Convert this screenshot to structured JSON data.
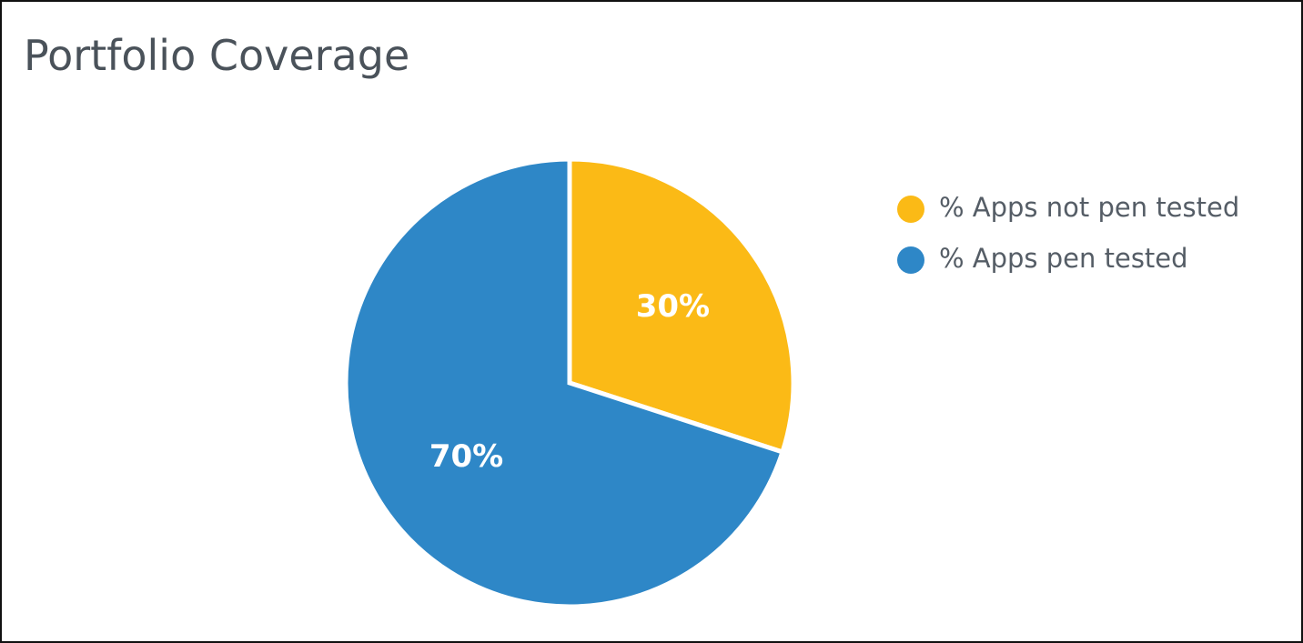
{
  "chart_data": {
    "type": "pie",
    "title": "Portfolio Coverage",
    "categories": [
      "% Apps not pen tested",
      "% Apps pen tested"
    ],
    "values": [
      30,
      70
    ],
    "value_labels": [
      "30%",
      "70%"
    ],
    "colors": [
      "#fbba16",
      "#2e87c7"
    ],
    "legend": "right"
  }
}
